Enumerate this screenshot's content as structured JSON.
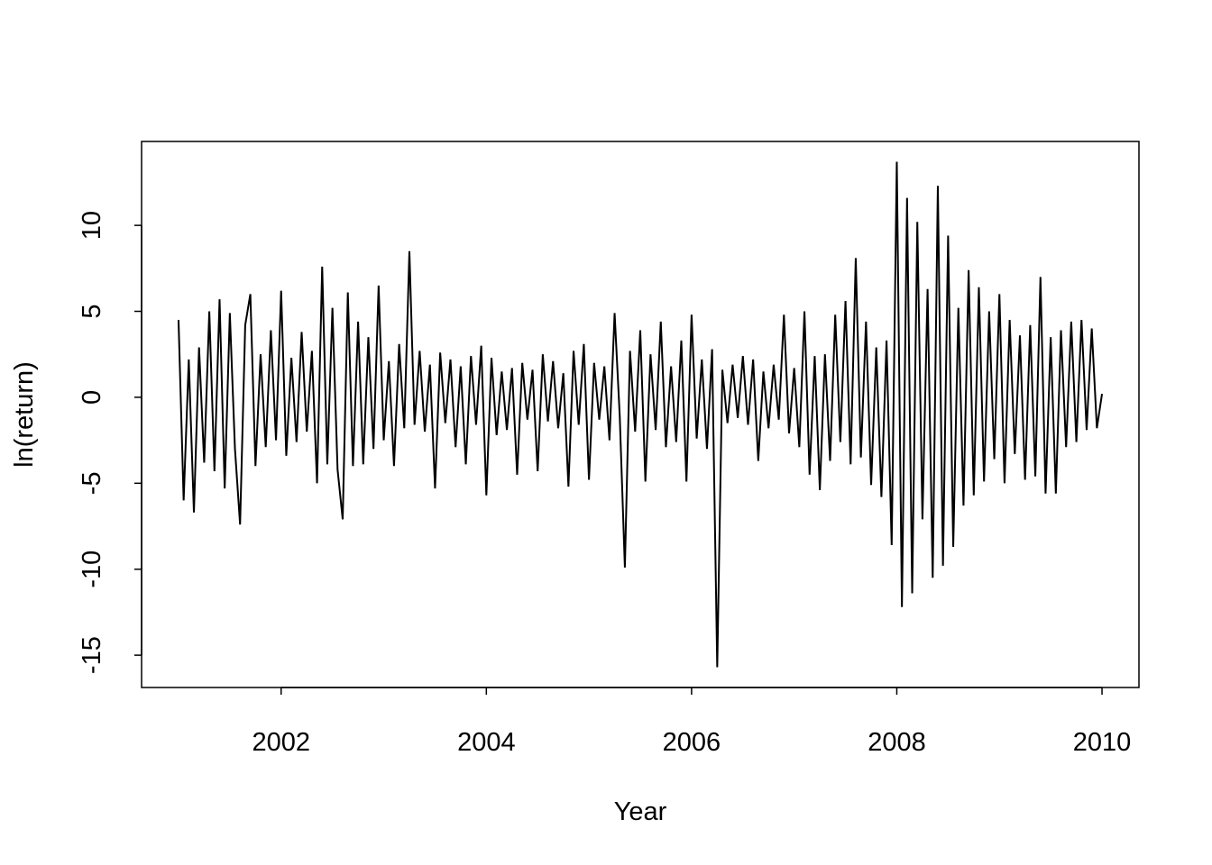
{
  "chart_data": {
    "type": "line",
    "x_label": "Year",
    "y_label": "ln(return)",
    "color": "#000000",
    "xlim": [
      2000.64,
      2010.36
    ],
    "xticks": [
      2002,
      2004,
      2006,
      2008,
      2010
    ],
    "ylim": [
      -16.88,
      14.88
    ],
    "yticks": [
      -15,
      -10,
      -5,
      0,
      5,
      10
    ],
    "x": [
      2001,
      2001.05,
      2001.1,
      2001.15,
      2001.2,
      2001.25,
      2001.3,
      2001.35,
      2001.4,
      2001.45,
      2001.5,
      2001.55,
      2001.6,
      2001.65,
      2001.7,
      2001.75,
      2001.8,
      2001.85,
      2001.9,
      2001.95,
      2002,
      2002.05,
      2002.1,
      2002.15,
      2002.2,
      2002.25,
      2002.3,
      2002.35,
      2002.4,
      2002.45,
      2002.5,
      2002.55,
      2002.6,
      2002.65,
      2002.7,
      2002.75,
      2002.8,
      2002.85,
      2002.9,
      2002.95,
      2003,
      2003.05,
      2003.1,
      2003.15,
      2003.2,
      2003.25,
      2003.3,
      2003.35,
      2003.4,
      2003.45,
      2003.5,
      2003.55,
      2003.6,
      2003.65,
      2003.7,
      2003.75,
      2003.8,
      2003.85,
      2003.9,
      2003.95,
      2004,
      2004.05,
      2004.1,
      2004.15,
      2004.2,
      2004.25,
      2004.3,
      2004.35,
      2004.4,
      2004.45,
      2004.5,
      2004.55,
      2004.6,
      2004.65,
      2004.7,
      2004.75,
      2004.8,
      2004.85,
      2004.9,
      2004.95,
      2005,
      2005.05,
      2005.1,
      2005.15,
      2005.2,
      2005.25,
      2005.3,
      2005.35,
      2005.4,
      2005.45,
      2005.5,
      2005.55,
      2005.6,
      2005.65,
      2005.7,
      2005.75,
      2005.8,
      2005.85,
      2005.9,
      2005.95,
      2006,
      2006.05,
      2006.1,
      2006.15,
      2006.2,
      2006.25,
      2006.3,
      2006.35,
      2006.4,
      2006.45,
      2006.5,
      2006.55,
      2006.6,
      2006.65,
      2006.7,
      2006.75,
      2006.8,
      2006.85,
      2006.9,
      2006.95,
      2007,
      2007.05,
      2007.1,
      2007.15,
      2007.2,
      2007.25,
      2007.3,
      2007.35,
      2007.4,
      2007.45,
      2007.5,
      2007.55,
      2007.6,
      2007.65,
      2007.7,
      2007.75,
      2007.8,
      2007.85,
      2007.9,
      2007.95,
      2008,
      2008.05,
      2008.1,
      2008.15,
      2008.2,
      2008.25,
      2008.3,
      2008.35,
      2008.4,
      2008.45,
      2008.5,
      2008.55,
      2008.6,
      2008.65,
      2008.7,
      2008.75,
      2008.8,
      2008.85,
      2008.9,
      2008.95,
      2009,
      2009.05,
      2009.1,
      2009.15,
      2009.2,
      2009.25,
      2009.3,
      2009.35,
      2009.4,
      2009.45,
      2009.5,
      2009.55,
      2009.6,
      2009.65,
      2009.7,
      2009.75,
      2009.8,
      2009.85,
      2009.9,
      2009.95,
      2010
    ],
    "values": [
      4.5,
      -6.0,
      2.2,
      -6.7,
      2.9,
      -3.8,
      5.0,
      -4.3,
      5.7,
      -5.3,
      4.9,
      -3.0,
      -7.4,
      4.2,
      6.0,
      -4.0,
      2.5,
      -2.9,
      3.9,
      -2.5,
      6.2,
      -3.4,
      2.3,
      -2.6,
      3.8,
      -2.0,
      2.7,
      -5.0,
      7.6,
      -3.9,
      5.2,
      -4.2,
      -7.1,
      6.1,
      -4.0,
      4.4,
      -3.9,
      3.5,
      -3.0,
      6.5,
      -2.5,
      2.1,
      -4.0,
      3.1,
      -1.8,
      8.5,
      -1.6,
      2.7,
      -2.0,
      1.9,
      -5.3,
      2.6,
      -1.5,
      2.2,
      -2.9,
      1.8,
      -3.9,
      2.4,
      -1.6,
      3.0,
      -5.7,
      2.3,
      -2.2,
      1.5,
      -1.9,
      1.7,
      -4.5,
      2.0,
      -1.3,
      1.6,
      -4.3,
      2.5,
      -1.4,
      2.1,
      -1.8,
      1.4,
      -5.2,
      2.7,
      -1.6,
      3.1,
      -4.8,
      2.0,
      -1.3,
      1.8,
      -2.5,
      4.9,
      -1.1,
      -9.9,
      2.7,
      -2.0,
      3.9,
      -4.9,
      2.5,
      -1.9,
      4.4,
      -2.9,
      1.8,
      -2.6,
      3.3,
      -4.9,
      4.8,
      -2.4,
      2.2,
      -3.0,
      2.8,
      -15.7,
      1.6,
      -1.5,
      1.9,
      -1.2,
      2.4,
      -1.6,
      2.2,
      -3.7,
      1.5,
      -1.8,
      1.9,
      -1.3,
      4.8,
      -2.1,
      1.7,
      -2.9,
      5.0,
      -4.5,
      2.4,
      -5.4,
      2.5,
      -3.7,
      4.8,
      -2.6,
      5.6,
      -3.9,
      8.1,
      -3.5,
      4.4,
      -5.1,
      2.9,
      -5.8,
      3.3,
      -8.6,
      13.7,
      -12.2,
      11.6,
      -11.4,
      10.2,
      -7.1,
      6.3,
      -10.5,
      12.3,
      -9.8,
      9.4,
      -8.7,
      5.2,
      -6.3,
      7.4,
      -5.7,
      6.4,
      -4.9,
      5.0,
      -3.6,
      6.0,
      -5.0,
      4.5,
      -3.3,
      3.6,
      -4.8,
      4.2,
      -4.6,
      7.0,
      -5.6,
      3.5,
      -5.6,
      3.9,
      -2.9,
      4.4,
      -2.6,
      4.5,
      -1.9,
      4.0,
      -1.8,
      0.2
    ]
  }
}
